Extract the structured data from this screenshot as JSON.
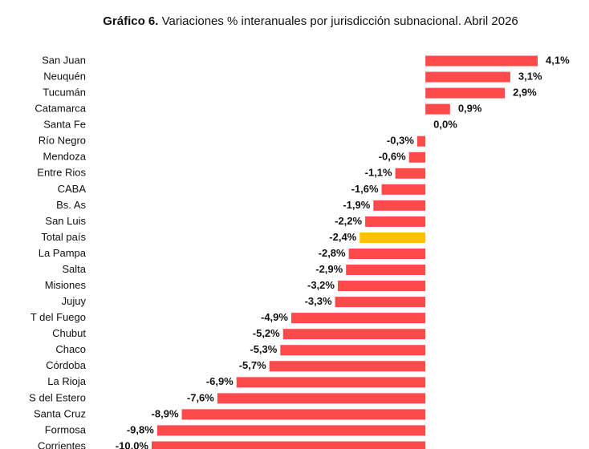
{
  "chart_data": {
    "type": "hbar",
    "title_label": "Gráfico 6.",
    "title": "Variaciones % interanuales por jurisdicción subnacional. Abril 2026",
    "categories": [
      "San Juan",
      "Neuquén",
      "Tucumán",
      "Catamarca",
      "Santa Fe",
      "Río Negro",
      "Mendoza",
      "Entre Rios",
      "CABA",
      "Bs. As",
      "San Luis",
      "Total país",
      "La Pampa",
      "Salta",
      "Misiones",
      "Jujuy",
      "T del Fuego",
      "Chubut",
      "Chaco",
      "Córdoba",
      "La Rioja",
      "S del Estero",
      "Santa Cruz",
      "Formosa",
      "Corrientes"
    ],
    "values": [
      4.1,
      3.1,
      2.9,
      0.9,
      0.0,
      -0.3,
      -0.6,
      -1.1,
      -1.6,
      -1.9,
      -2.2,
      -2.4,
      -2.8,
      -2.9,
      -3.2,
      -3.3,
      -4.9,
      -5.2,
      -5.3,
      -5.7,
      -6.9,
      -7.6,
      -8.9,
      -9.8,
      -10.0
    ],
    "value_labels": [
      "4,1%",
      "3,1%",
      "2,9%",
      "0,9%",
      "0,0%",
      "-0,3%",
      "-0,6%",
      "-1,1%",
      "-1,6%",
      "-1,9%",
      "-2,2%",
      "-2,4%",
      "-2,8%",
      "-2,9%",
      "-3,2%",
      "-3,3%",
      "-4,9%",
      "-5,2%",
      "-5,3%",
      "-5,7%",
      "-6,9%",
      "-7,6%",
      "-8,9%",
      "-9,8%",
      "-10,0%"
    ],
    "colors": [
      "#fe4a4a",
      "#fe4a4a",
      "#fe4a4a",
      "#fe4a4a",
      "#fe4a4a",
      "#fe4a4a",
      "#fe4a4a",
      "#fe4a4a",
      "#fe4a4a",
      "#fe4a4a",
      "#fe4a4a",
      "#ffc000",
      "#fe4a4a",
      "#fe4a4a",
      "#fe4a4a",
      "#fe4a4a",
      "#fe4a4a",
      "#fe4a4a",
      "#fe4a4a",
      "#fe4a4a",
      "#fe4a4a",
      "#fe4a4a",
      "#fe4a4a",
      "#fe4a4a",
      "#fe4a4a"
    ]
  }
}
